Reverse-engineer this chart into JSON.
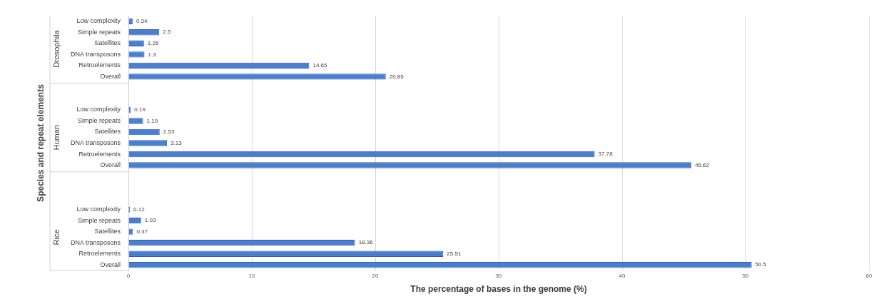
{
  "chart_data": {
    "type": "bar",
    "orientation": "horizontal",
    "xlabel": "The percentage of bases in the genome (%)",
    "ylabel": "Species and repeat elements",
    "categories": [
      "Low complexity",
      "Simple repeats",
      "Satellites",
      "DNA transposons",
      "Retroelements",
      "Overall",
      null,
      null,
      "Low complexity",
      "Simple repeats",
      "Satellites",
      "DNA transposons",
      "Retroelements",
      "Overall",
      null,
      null,
      null,
      "Low complexity",
      "Simple repeats",
      "Satellites",
      "DNA transposons",
      "Retroelements",
      "Overall"
    ],
    "values": [
      0.34,
      2.5,
      1.26,
      1.3,
      14.65,
      20.85,
      null,
      null,
      0.19,
      1.19,
      2.53,
      3.13,
      37.78,
      45.62,
      null,
      null,
      null,
      0.12,
      1.03,
      0.37,
      18.36,
      25.51,
      50.5
    ],
    "color": "#4a7fd0",
    "xlim": [
      0,
      60
    ],
    "xticks": [
      0,
      10,
      20,
      30,
      40,
      50,
      60
    ],
    "grid": "x",
    "data_labels": true,
    "legend": false,
    "annotations": [
      "Drosophila",
      "Human",
      "Rice"
    ]
  }
}
